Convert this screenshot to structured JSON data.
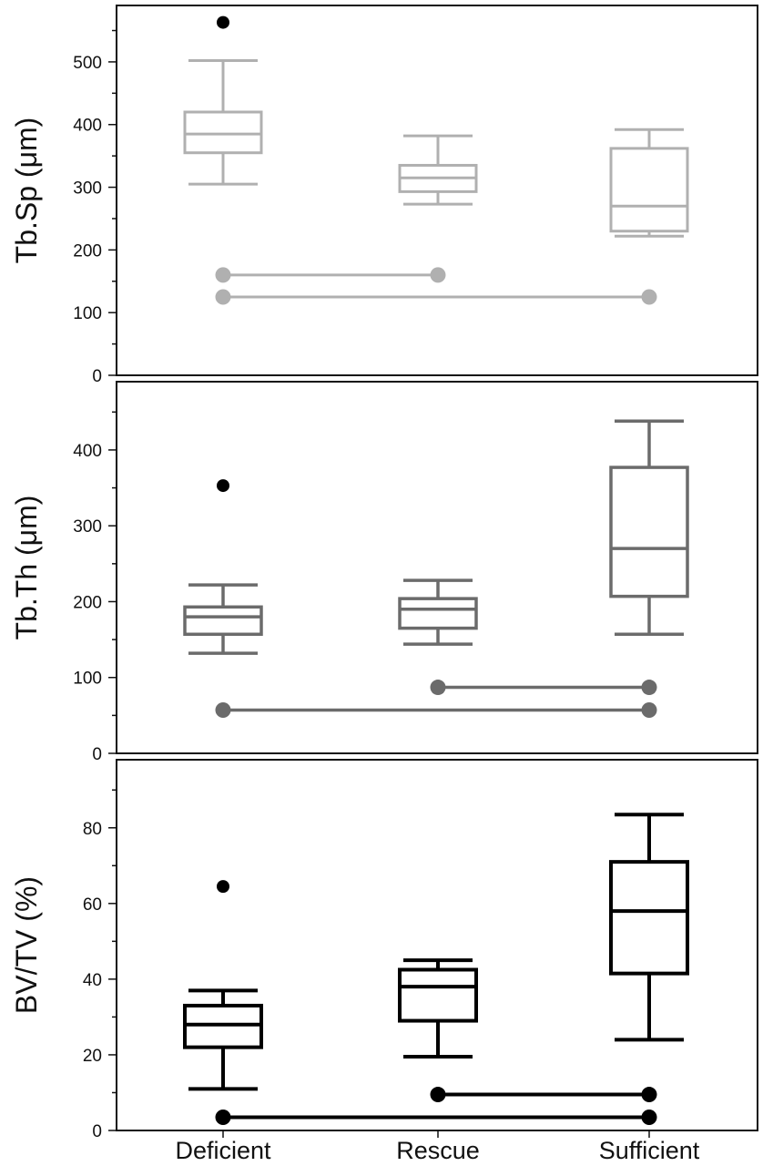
{
  "chart_data": [
    {
      "type": "boxplot",
      "ylabel": "Tb.Sp (μm)",
      "ylim": [
        0,
        590
      ],
      "yticks": [
        0,
        100,
        200,
        300,
        400,
        500
      ],
      "categories": [
        "Deficient",
        "Rescue",
        "Sufficient"
      ],
      "color": "#b0b0b0",
      "boxes": [
        {
          "category": "Deficient",
          "whisker_low": 305,
          "q1": 355,
          "median": 385,
          "q3": 420,
          "whisker_high": 502
        },
        {
          "category": "Rescue",
          "whisker_low": 273,
          "q1": 293,
          "median": 315,
          "q3": 335,
          "whisker_high": 382
        },
        {
          "category": "Sufficient",
          "whisker_low": 222,
          "q1": 230,
          "median": 270,
          "q3": 362,
          "whisker_high": 392
        }
      ],
      "outliers": [
        {
          "category": "Deficient",
          "value": 563
        }
      ],
      "significance": [
        {
          "from": "Deficient",
          "to": "Rescue",
          "y": 160
        },
        {
          "from": "Deficient",
          "to": "Sufficient",
          "y": 125
        }
      ]
    },
    {
      "type": "boxplot",
      "ylabel": "Tb.Th (μm)",
      "ylim": [
        0,
        490
      ],
      "yticks": [
        0,
        100,
        200,
        300,
        400
      ],
      "categories": [
        "Deficient",
        "Rescue",
        "Sufficient"
      ],
      "color": "#6b6b6b",
      "boxes": [
        {
          "category": "Deficient",
          "whisker_low": 132,
          "q1": 157,
          "median": 180,
          "q3": 193,
          "whisker_high": 222
        },
        {
          "category": "Rescue",
          "whisker_low": 144,
          "q1": 165,
          "median": 190,
          "q3": 204,
          "whisker_high": 228
        },
        {
          "category": "Sufficient",
          "whisker_low": 157,
          "q1": 207,
          "median": 270,
          "q3": 377,
          "whisker_high": 438
        }
      ],
      "outliers": [
        {
          "category": "Deficient",
          "value": 353
        }
      ],
      "significance": [
        {
          "from": "Rescue",
          "to": "Sufficient",
          "y": 87
        },
        {
          "from": "Deficient",
          "to": "Sufficient",
          "y": 57
        }
      ]
    },
    {
      "type": "boxplot",
      "ylabel": "BV/TV (%)",
      "ylim": [
        0,
        98
      ],
      "yticks": [
        0,
        20,
        40,
        60,
        80
      ],
      "categories": [
        "Deficient",
        "Rescue",
        "Sufficient"
      ],
      "color": "#000000",
      "boxes": [
        {
          "category": "Deficient",
          "whisker_low": 11,
          "q1": 22,
          "median": 28,
          "q3": 33,
          "whisker_high": 37
        },
        {
          "category": "Rescue",
          "whisker_low": 19.5,
          "q1": 29,
          "median": 38,
          "q3": 42.5,
          "whisker_high": 45
        },
        {
          "category": "Sufficient",
          "whisker_low": 24,
          "q1": 41.5,
          "median": 58,
          "q3": 71,
          "whisker_high": 83.5
        }
      ],
      "outliers": [
        {
          "category": "Deficient",
          "value": 64.5
        }
      ],
      "significance": [
        {
          "from": "Rescue",
          "to": "Sufficient",
          "y": 9.5
        },
        {
          "from": "Deficient",
          "to": "Sufficient",
          "y": 3.5
        }
      ]
    }
  ]
}
